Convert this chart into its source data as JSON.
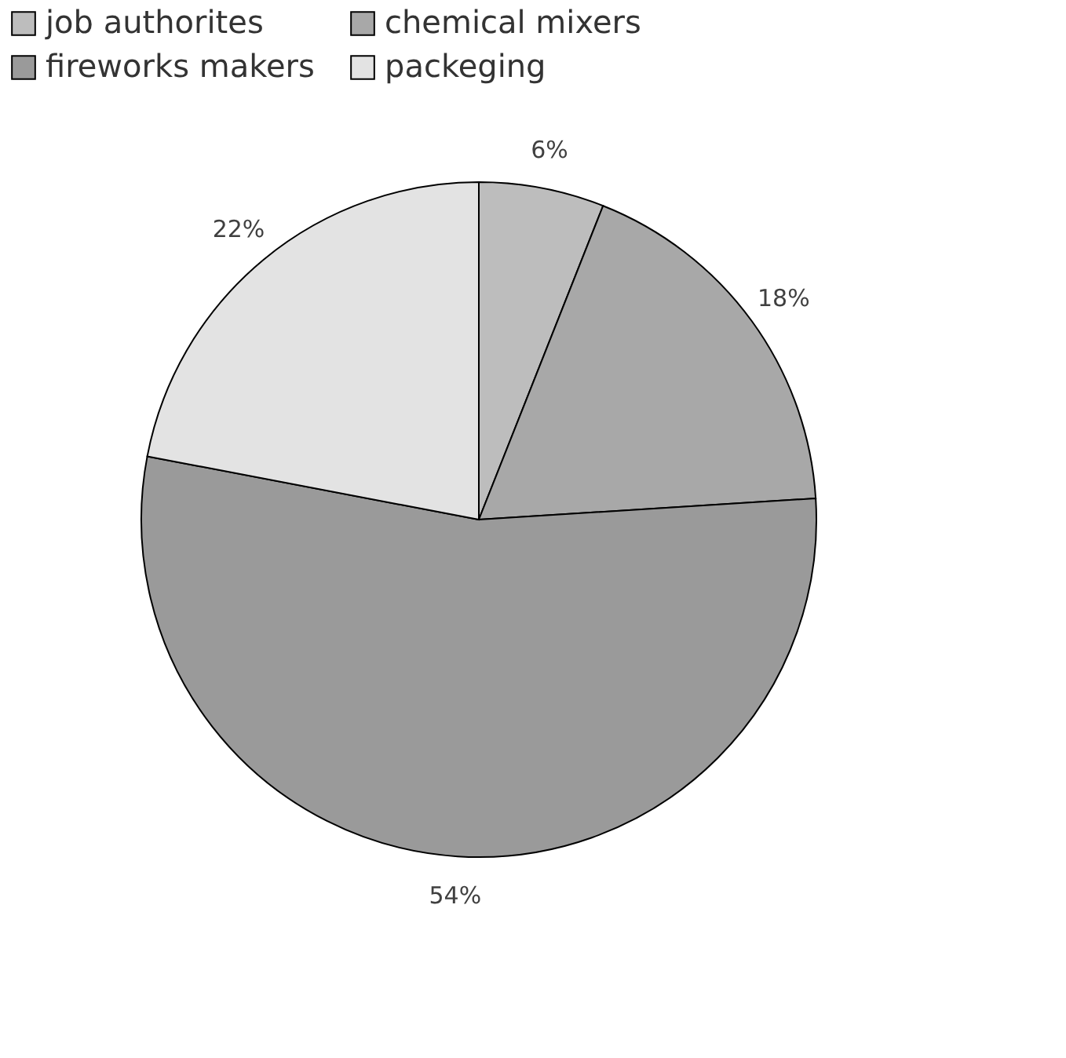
{
  "chart_data": {
    "type": "pie",
    "categories": [
      "job authorites",
      "chemical mixers",
      "fireworks makers",
      "packeging"
    ],
    "values": [
      6,
      18,
      54,
      22
    ],
    "value_labels": [
      "6%",
      "18%",
      "54%",
      "22%"
    ],
    "colors": [
      "#bdbdbd",
      "#a8a8a8",
      "#9a9a9a",
      "#e3e3e3"
    ],
    "legend": "top"
  }
}
